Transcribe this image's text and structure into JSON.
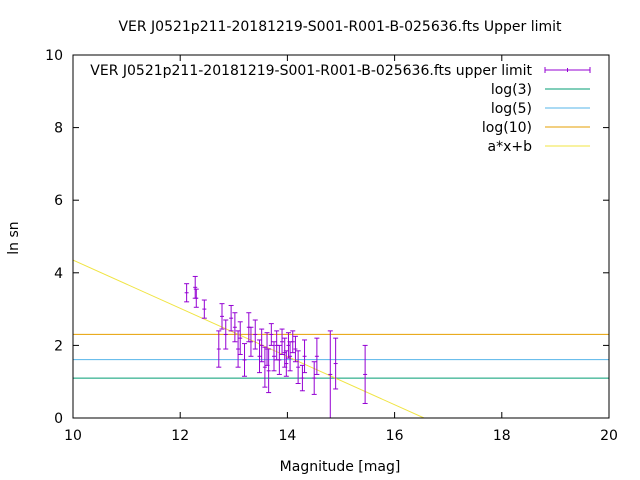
{
  "chart_data": {
    "type": "scatter",
    "title": "VER J0521p211-20181219-S001-R001-B-025636.fts Upper limit",
    "xlabel": "Magnitude [mag]",
    "ylabel": "ln sn",
    "xlim": [
      10,
      20
    ],
    "ylim": [
      0,
      10
    ],
    "xticks": [
      10,
      12,
      14,
      16,
      18,
      20
    ],
    "yticks": [
      0,
      2,
      4,
      6,
      8,
      10
    ],
    "grid": false,
    "legend_position": "top-right",
    "series": [
      {
        "name": "VER J0521p211-20181219-S001-R001-B-025636.fts upper limit",
        "color": "#9400d3",
        "kind": "errorbar",
        "points": [
          {
            "x": 12.12,
            "y": 3.45,
            "err": 0.25
          },
          {
            "x": 12.28,
            "y": 3.6,
            "err": 0.3
          },
          {
            "x": 12.3,
            "y": 3.3,
            "err": 0.25
          },
          {
            "x": 12.45,
            "y": 3.0,
            "err": 0.25
          },
          {
            "x": 12.72,
            "y": 1.9,
            "err": 0.5
          },
          {
            "x": 12.78,
            "y": 2.8,
            "err": 0.35
          },
          {
            "x": 12.85,
            "y": 2.3,
            "err": 0.4
          },
          {
            "x": 12.95,
            "y": 2.75,
            "err": 0.35
          },
          {
            "x": 13.02,
            "y": 2.5,
            "err": 0.4
          },
          {
            "x": 13.08,
            "y": 1.9,
            "err": 0.5
          },
          {
            "x": 13.12,
            "y": 2.2,
            "err": 0.45
          },
          {
            "x": 13.2,
            "y": 1.6,
            "err": 0.45
          },
          {
            "x": 13.28,
            "y": 2.5,
            "err": 0.4
          },
          {
            "x": 13.32,
            "y": 2.1,
            "err": 0.4
          },
          {
            "x": 13.4,
            "y": 2.3,
            "err": 0.4
          },
          {
            "x": 13.48,
            "y": 1.7,
            "err": 0.45
          },
          {
            "x": 13.52,
            "y": 2.0,
            "err": 0.45
          },
          {
            "x": 13.58,
            "y": 1.4,
            "err": 0.55
          },
          {
            "x": 13.62,
            "y": 1.9,
            "err": 0.45
          },
          {
            "x": 13.65,
            "y": 1.3,
            "err": 0.6
          },
          {
            "x": 13.7,
            "y": 2.3,
            "err": 0.3
          },
          {
            "x": 13.75,
            "y": 1.7,
            "err": 0.4
          },
          {
            "x": 13.8,
            "y": 2.0,
            "err": 0.4
          },
          {
            "x": 13.85,
            "y": 1.6,
            "err": 0.4
          },
          {
            "x": 13.9,
            "y": 2.1,
            "err": 0.35
          },
          {
            "x": 13.95,
            "y": 1.8,
            "err": 0.4
          },
          {
            "x": 13.98,
            "y": 1.5,
            "err": 0.35
          },
          {
            "x": 14.02,
            "y": 2.0,
            "err": 0.35
          },
          {
            "x": 14.05,
            "y": 1.7,
            "err": 0.4
          },
          {
            "x": 14.1,
            "y": 2.1,
            "err": 0.3
          },
          {
            "x": 14.15,
            "y": 1.9,
            "err": 0.35
          },
          {
            "x": 14.2,
            "y": 1.4,
            "err": 0.45
          },
          {
            "x": 14.28,
            "y": 1.1,
            "err": 0.35
          },
          {
            "x": 14.32,
            "y": 1.7,
            "err": 0.45
          },
          {
            "x": 14.5,
            "y": 1.1,
            "err": 0.45
          },
          {
            "x": 14.55,
            "y": 1.7,
            "err": 0.5
          },
          {
            "x": 14.8,
            "y": 1.2,
            "err": 1.2
          },
          {
            "x": 14.9,
            "y": 1.5,
            "err": 0.7
          },
          {
            "x": 15.45,
            "y": 1.2,
            "err": 0.8
          }
        ]
      },
      {
        "name": "log(3)",
        "color": "#009e73",
        "kind": "hline",
        "y": 1.0986
      },
      {
        "name": "log(5)",
        "color": "#56b4e9",
        "kind": "hline",
        "y": 1.6094
      },
      {
        "name": "log(10)",
        "color": "#e69f00",
        "kind": "hline",
        "y": 2.3026
      },
      {
        "name": "a*x+b",
        "color": "#f0e442",
        "kind": "line",
        "points": [
          [
            10,
            4.35
          ],
          [
            16.55,
            0
          ]
        ]
      }
    ]
  }
}
